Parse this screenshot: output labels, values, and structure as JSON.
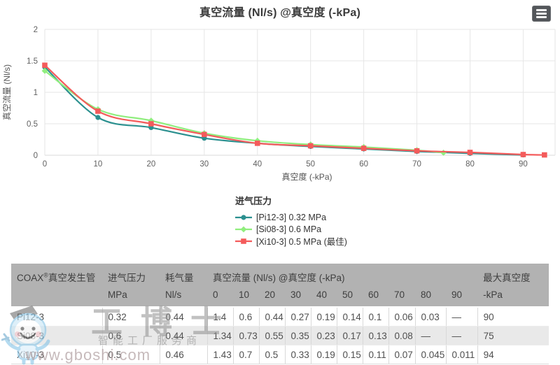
{
  "chart_data": {
    "type": "line",
    "title": "真空流量 (Nl/s) @真空度 (-kPa)",
    "xlabel": "真空度 (-kPa)",
    "ylabel": "真空流量 (Nl/s)",
    "xlim": [
      0,
      96
    ],
    "ylim": [
      0,
      2
    ],
    "x_ticks": [
      0,
      10,
      20,
      30,
      40,
      50,
      60,
      70,
      80,
      90
    ],
    "y_ticks": [
      0,
      0.5,
      1,
      1.5,
      2
    ],
    "grid": true,
    "legend_position": "bottom-center",
    "legend_title": "进气压力",
    "series": [
      {
        "name": "[Pi12-3] 0.32 MPa",
        "color": "#2b908f",
        "marker": "circle",
        "points": [
          [
            0,
            1.4
          ],
          [
            10,
            0.6
          ],
          [
            20,
            0.44
          ],
          [
            30,
            0.27
          ],
          [
            40,
            0.19
          ],
          [
            50,
            0.14
          ],
          [
            60,
            0.1
          ],
          [
            70,
            0.06
          ],
          [
            80,
            0.03
          ],
          [
            90,
            0.005
          ]
        ]
      },
      {
        "name": "[Si08-3] 0.6 MPa",
        "color": "#90ee7e",
        "marker": "diamond",
        "points": [
          [
            0,
            1.34
          ],
          [
            10,
            0.73
          ],
          [
            20,
            0.55
          ],
          [
            30,
            0.35
          ],
          [
            40,
            0.23
          ],
          [
            50,
            0.17
          ],
          [
            60,
            0.13
          ],
          [
            70,
            0.08
          ],
          [
            75,
            0.04
          ]
        ]
      },
      {
        "name": "[Xi10-3] 0.5 MPa (最佳)",
        "color": "#f45b5b",
        "marker": "square",
        "points": [
          [
            0,
            1.43
          ],
          [
            10,
            0.7
          ],
          [
            20,
            0.5
          ],
          [
            30,
            0.33
          ],
          [
            40,
            0.19
          ],
          [
            50,
            0.15
          ],
          [
            60,
            0.11
          ],
          [
            70,
            0.07
          ],
          [
            80,
            0.045
          ],
          [
            90,
            0.011
          ],
          [
            94,
            0.005
          ]
        ]
      }
    ]
  },
  "menu_button": {
    "icon": "hamburger-icon"
  },
  "table": {
    "header": {
      "product_brand": "COAX",
      "product_reg": "®",
      "product_rest": "真空发生管",
      "col_pressure": "进气压力",
      "col_consumption": "耗气量",
      "col_flow": "真空流量 (Nl/s) @真空度 (-kPa)",
      "col_max_vacuum": "最大真空度",
      "unit_pressure": "MPa",
      "unit_consumption": "Nl/s",
      "vacuum_levels": [
        "0",
        "10",
        "20",
        "30",
        "40",
        "50",
        "60",
        "70",
        "80",
        "90"
      ],
      "unit_max_vacuum": "-kPa"
    },
    "rows": [
      {
        "model": "Pi12-3",
        "pressure": "0.32",
        "consumption": "0.44",
        "flows": [
          "1.4",
          "0.6",
          "0.44",
          "0.27",
          "0.19",
          "0.14",
          "0.1",
          "0.06",
          "0.03",
          "—"
        ],
        "max_vacuum": "90"
      },
      {
        "model": "Si08-3",
        "pressure": "0.6",
        "consumption": "0.44",
        "flows": [
          "1.34",
          "0.73",
          "0.55",
          "0.35",
          "0.23",
          "0.17",
          "0.13",
          "0.08",
          "—",
          "—"
        ],
        "max_vacuum": "75"
      },
      {
        "model": "Xi10-3",
        "pressure": "0.5",
        "consumption": "0.46",
        "flows": [
          "1.43",
          "0.7",
          "0.5",
          "0.33",
          "0.19",
          "0.15",
          "0.11",
          "0.07",
          "0.045",
          "0.011"
        ],
        "max_vacuum": "94"
      }
    ]
  },
  "watermark": {
    "brand": "工博士",
    "tagline": "智能工厂服务商",
    "url": "www.gboshi.com",
    "mascot": "robot-mascot-icon"
  },
  "ui_colors": {
    "series_teal": "#2b908f",
    "series_green": "#90ee7e",
    "series_red": "#f45b5b",
    "table_header_bg": "#b2b2b2",
    "table_stripe_bg": "#e9e9e9",
    "grid_line": "#e6e6e6",
    "menu_button_bg": "#53565A"
  }
}
